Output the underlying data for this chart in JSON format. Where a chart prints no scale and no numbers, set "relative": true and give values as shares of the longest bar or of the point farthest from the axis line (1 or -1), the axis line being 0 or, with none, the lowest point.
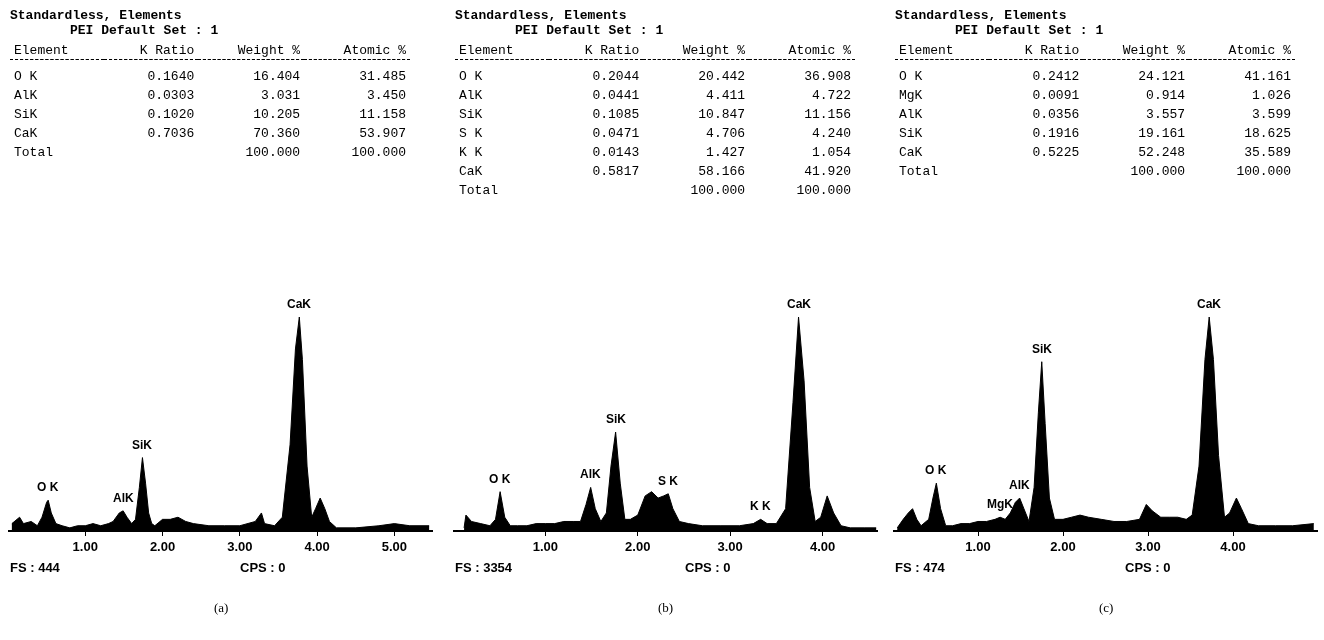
{
  "chart_data": [
    {
      "type": "other",
      "title": "Standardless, Elements",
      "subtitle": "PEI Default Set : 1",
      "ylabel": "Element",
      "categories": [
        "K Ratio",
        "Weight %",
        "Atomic %"
      ],
      "y_categories": [
        "O K",
        "AlK",
        "SiK",
        "CaK",
        "Total"
      ],
      "cell_labels": [
        [
          "0.1640",
          "16.404",
          "31.485"
        ],
        [
          "0.0303",
          "3.031",
          "3.450"
        ],
        [
          "0.1020",
          "10.205",
          "11.158"
        ],
        [
          "0.7036",
          "70.360",
          "53.907"
        ],
        [
          null,
          "100.000",
          "100.000"
        ]
      ]
    },
    {
      "type": "other",
      "title": "Standardless, Elements",
      "subtitle": "PEI Default Set : 1",
      "ylabel": "Element",
      "categories": [
        "K Ratio",
        "Weight %",
        "Atomic %"
      ],
      "y_categories": [
        "O K",
        "AlK",
        "SiK",
        "S K",
        "K K",
        "CaK",
        "Total"
      ],
      "cell_labels": [
        [
          "0.2044",
          "20.442",
          "36.908"
        ],
        [
          "0.0441",
          "4.411",
          "4.722"
        ],
        [
          "0.1085",
          "10.847",
          "11.156"
        ],
        [
          "0.0471",
          "4.706",
          "4.240"
        ],
        [
          "0.0143",
          "1.427",
          "1.054"
        ],
        [
          "0.5817",
          "58.166",
          "41.920"
        ],
        [
          null,
          "100.000",
          "100.000"
        ]
      ]
    },
    {
      "type": "other",
      "title": "Standardless, Elements",
      "subtitle": "PEI Default Set : 1",
      "ylabel": "Element",
      "categories": [
        "K Ratio",
        "Weight %",
        "Atomic %"
      ],
      "y_categories": [
        "O K",
        "MgK",
        "AlK",
        "SiK",
        "CaK",
        "Total"
      ],
      "cell_labels": [
        [
          "0.2412",
          "24.121",
          "41.161"
        ],
        [
          "0.0091",
          "0.914",
          "1.026"
        ],
        [
          "0.0356",
          "3.557",
          "3.599"
        ],
        [
          "0.1916",
          "19.161",
          "18.625"
        ],
        [
          "0.5225",
          "52.248",
          "35.589"
        ],
        [
          null,
          "100.000",
          "100.000"
        ]
      ]
    },
    {
      "type": "area",
      "relative": true,
      "color": "#000000",
      "xlim": [
        0,
        5.5
      ],
      "xticks": [
        {
          "value": 1,
          "label": "1.00"
        },
        {
          "value": 2,
          "label": "2.00"
        },
        {
          "value": 3,
          "label": "3.00"
        },
        {
          "value": 4,
          "label": "4.00"
        },
        {
          "value": 5,
          "label": "5.00"
        }
      ],
      "x": [
        0.05,
        0.15,
        0.2,
        0.3,
        0.38,
        0.44,
        0.5,
        0.52,
        0.56,
        0.62,
        0.7,
        0.8,
        0.9,
        1.0,
        1.1,
        1.2,
        1.3,
        1.36,
        1.44,
        1.49,
        1.54,
        1.6,
        1.65,
        1.7,
        1.74,
        1.78,
        1.82,
        1.86,
        1.9,
        2.0,
        2.1,
        2.2,
        2.3,
        2.4,
        2.6,
        2.8,
        3.0,
        3.2,
        3.28,
        3.32,
        3.45,
        3.55,
        3.65,
        3.72,
        3.77,
        3.81,
        3.87,
        3.93,
        3.98,
        4.04,
        4.1,
        4.16,
        4.25,
        4.5,
        4.8,
        5.0,
        5.2,
        5.45
      ],
      "values": [
        0.03,
        0.06,
        0.03,
        0.04,
        0.02,
        0.06,
        0.13,
        0.14,
        0.08,
        0.03,
        0.02,
        0.01,
        0.02,
        0.02,
        0.03,
        0.02,
        0.03,
        0.04,
        0.08,
        0.09,
        0.06,
        0.03,
        0.05,
        0.2,
        0.34,
        0.22,
        0.08,
        0.03,
        0.02,
        0.05,
        0.05,
        0.06,
        0.04,
        0.03,
        0.02,
        0.02,
        0.02,
        0.04,
        0.08,
        0.03,
        0.02,
        0.06,
        0.4,
        0.85,
        1,
        0.8,
        0.3,
        0.06,
        0.1,
        0.15,
        0.1,
        0.04,
        0.01,
        0.01,
        0.02,
        0.03,
        0.02,
        0.02
      ],
      "annotations": [
        {
          "text": "O K",
          "x": 0.52,
          "y": 0.14
        },
        {
          "text": "AlK",
          "x": 1.49,
          "y": 0.09
        },
        {
          "text": "SiK",
          "x": 1.74,
          "y": 0.34
        },
        {
          "text": "CaK",
          "x": 3.77,
          "y": 1
        },
        "FS : 444",
        "CPS : 0",
        "(a)"
      ]
    },
    {
      "type": "area",
      "relative": true,
      "color": "#000000",
      "xlim": [
        0,
        4.6
      ],
      "xticks": [
        {
          "value": 1,
          "label": "1.00"
        },
        {
          "value": 2,
          "label": "2.00"
        },
        {
          "value": 3,
          "label": "3.00"
        },
        {
          "value": 4,
          "label": "4.00"
        }
      ],
      "x": [
        0.12,
        0.14,
        0.2,
        0.3,
        0.4,
        0.46,
        0.51,
        0.56,
        0.62,
        0.7,
        0.8,
        0.9,
        1.0,
        1.1,
        1.2,
        1.3,
        1.38,
        1.44,
        1.49,
        1.54,
        1.6,
        1.66,
        1.71,
        1.76,
        1.81,
        1.86,
        1.92,
        2.0,
        2.08,
        2.15,
        2.22,
        2.28,
        2.33,
        2.38,
        2.45,
        2.55,
        2.7,
        2.9,
        3.1,
        3.25,
        3.33,
        3.4,
        3.5,
        3.6,
        3.68,
        3.74,
        3.8,
        3.86,
        3.92,
        3.98,
        4.05,
        4.12,
        4.2,
        4.3,
        4.45,
        4.58
      ],
      "values": [
        0.01,
        0.07,
        0.04,
        0.03,
        0.02,
        0.05,
        0.18,
        0.06,
        0.02,
        0.02,
        0.02,
        0.03,
        0.03,
        0.03,
        0.04,
        0.04,
        0.04,
        0.12,
        0.2,
        0.1,
        0.04,
        0.08,
        0.3,
        0.46,
        0.22,
        0.05,
        0.05,
        0.07,
        0.16,
        0.18,
        0.15,
        0.16,
        0.17,
        0.1,
        0.04,
        0.03,
        0.02,
        0.02,
        0.02,
        0.03,
        0.05,
        0.03,
        0.03,
        0.1,
        0.6,
        1,
        0.7,
        0.2,
        0.04,
        0.06,
        0.16,
        0.08,
        0.02,
        0.01,
        0.01,
        0.01
      ],
      "annotations": [
        {
          "text": "O K",
          "x": 0.51,
          "y": 0.18
        },
        {
          "text": "AlK",
          "x": 1.49,
          "y": 0.2
        },
        {
          "text": "SiK",
          "x": 1.76,
          "y": 0.46
        },
        {
          "text": "S K",
          "x": 2.33,
          "y": 0.17
        },
        {
          "text": "K K",
          "x": 3.33,
          "y": 0.05
        },
        {
          "text": "CaK",
          "x": 3.74,
          "y": 1
        },
        "FS : 3354",
        "CPS : 0",
        "(b)"
      ]
    },
    {
      "type": "area",
      "relative": true,
      "color": "#000000",
      "xlim": [
        0,
        5.0
      ],
      "xticks": [
        {
          "value": 1,
          "label": "1.00"
        },
        {
          "value": 2,
          "label": "2.00"
        },
        {
          "value": 3,
          "label": "3.00"
        },
        {
          "value": 4,
          "label": "4.00"
        }
      ],
      "x": [
        0.05,
        0.12,
        0.18,
        0.23,
        0.28,
        0.33,
        0.42,
        0.47,
        0.51,
        0.56,
        0.62,
        0.7,
        0.8,
        0.9,
        1.0,
        1.1,
        1.2,
        1.26,
        1.32,
        1.38,
        1.44,
        1.49,
        1.54,
        1.6,
        1.66,
        1.71,
        1.75,
        1.79,
        1.84,
        1.9,
        2.0,
        2.1,
        2.2,
        2.3,
        2.45,
        2.6,
        2.75,
        2.9,
        2.98,
        3.05,
        3.15,
        3.25,
        3.35,
        3.45,
        3.52,
        3.6,
        3.67,
        3.72,
        3.77,
        3.83,
        3.9,
        3.96,
        4.04,
        4.1,
        4.18,
        4.3,
        4.5,
        4.7,
        4.95
      ],
      "values": [
        0.01,
        0.05,
        0.08,
        0.1,
        0.05,
        0.02,
        0.05,
        0.15,
        0.22,
        0.1,
        0.02,
        0.02,
        0.03,
        0.03,
        0.04,
        0.04,
        0.05,
        0.06,
        0.05,
        0.08,
        0.13,
        0.15,
        0.1,
        0.04,
        0.2,
        0.55,
        0.79,
        0.5,
        0.15,
        0.05,
        0.05,
        0.06,
        0.07,
        0.06,
        0.05,
        0.04,
        0.04,
        0.05,
        0.12,
        0.09,
        0.06,
        0.06,
        0.06,
        0.05,
        0.07,
        0.3,
        0.8,
        1,
        0.8,
        0.35,
        0.06,
        0.08,
        0.15,
        0.1,
        0.03,
        0.02,
        0.02,
        0.02,
        0.03
      ],
      "annotations": [
        {
          "text": "O K",
          "x": 0.51,
          "y": 0.22
        },
        {
          "text": "MgK",
          "x": 1.26,
          "y": 0.06
        },
        {
          "text": "AlK",
          "x": 1.49,
          "y": 0.15
        },
        {
          "text": "SiK",
          "x": 1.75,
          "y": 0.79
        },
        {
          "text": "CaK",
          "x": 3.72,
          "y": 1
        },
        "FS : 474",
        "CPS : 0",
        "(c)"
      ]
    }
  ]
}
